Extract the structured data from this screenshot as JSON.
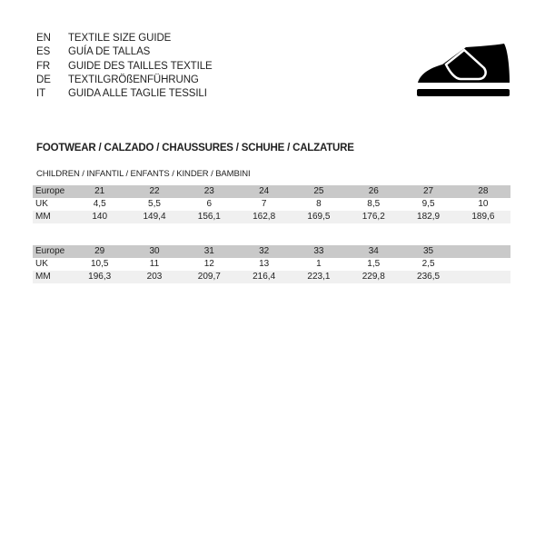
{
  "languages": [
    {
      "code": "EN",
      "title": "TEXTILE SIZE GUIDE"
    },
    {
      "code": "ES",
      "title": "GUÍA DE TALLAS"
    },
    {
      "code": "FR",
      "title": "GUIDE DES TAILLES TEXTILE"
    },
    {
      "code": "DE",
      "title": "TEXTILGRÖßENFÜHRUNG"
    },
    {
      "code": "IT",
      "title": "GUIDA ALLE TAGLIE TESSILI"
    }
  ],
  "icon": "shoe-icon",
  "section_title": "FOOTWEAR / CALZADO / CHAUSSURES / SCHUHE / CALZATURE",
  "subsection_title": "CHILDREN / INFANTIL / ENFANTS / KINDER / BAMBINI",
  "tables": [
    {
      "rows": [
        {
          "label": "Europe",
          "values": [
            "21",
            "22",
            "23",
            "24",
            "25",
            "26",
            "27",
            "28"
          ]
        },
        {
          "label": "UK",
          "values": [
            "4,5",
            "5,5",
            "6",
            "7",
            "8",
            "8,5",
            "9,5",
            "10"
          ]
        },
        {
          "label": "MM",
          "values": [
            "140",
            "149,4",
            "156,1",
            "162,8",
            "169,5",
            "176,2",
            "182,9",
            "189,6"
          ]
        }
      ]
    },
    {
      "rows": [
        {
          "label": "Europe",
          "values": [
            "29",
            "30",
            "31",
            "32",
            "33",
            "34",
            "35",
            ""
          ]
        },
        {
          "label": "UK",
          "values": [
            "10,5",
            "11",
            "12",
            "13",
            "1",
            "1,5",
            "2,5",
            ""
          ]
        },
        {
          "label": "MM",
          "values": [
            "196,3",
            "203",
            "209,7",
            "216,4",
            "223,1",
            "229,8",
            "236,5",
            ""
          ]
        }
      ]
    }
  ]
}
